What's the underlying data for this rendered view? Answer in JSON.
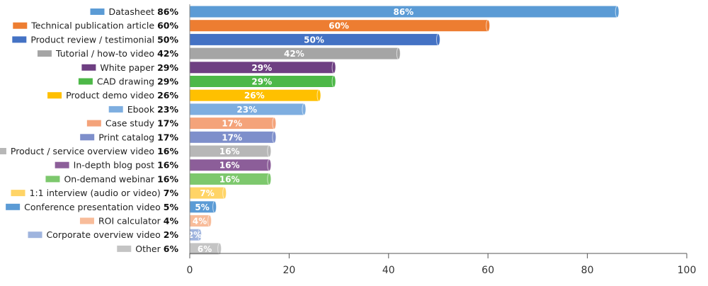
{
  "chart_data": {
    "type": "bar",
    "orientation": "horizontal",
    "categories": [
      "Datasheet",
      "Technical publication article",
      "Product review / testimonial",
      "Tutorial / how-to video",
      "White paper",
      "CAD drawing",
      "Product demo video",
      "Ebook",
      "Case study",
      "Print catalog",
      "Product / service overview video",
      "In-depth blog post",
      "On-demand webinar",
      "1:1 interview (audio or video)",
      "Conference presentation video",
      "ROI calculator",
      "Corporate overview video",
      "Other"
    ],
    "values": [
      86,
      60,
      50,
      42,
      29,
      29,
      26,
      23,
      17,
      17,
      16,
      16,
      16,
      7,
      5,
      4,
      2,
      6
    ],
    "value_labels": [
      "86%",
      "60%",
      "50%",
      "42%",
      "29%",
      "29%",
      "26%",
      "23%",
      "17%",
      "17%",
      "16%",
      "16%",
      "16%",
      "7%",
      "5%",
      "4%",
      "2%",
      "6%"
    ],
    "colors": [
      "#5B9BD5",
      "#ED7D31",
      "#4472C4",
      "#A5A5A5",
      "#6E3F82",
      "#4DB848",
      "#FFC000",
      "#7EAEE0",
      "#F4A37A",
      "#7E8FCB",
      "#B7B7B7",
      "#8C5E99",
      "#7DC86D",
      "#FFD466",
      "#5B9BD5",
      "#F8BC9A",
      "#9FB4DE",
      "#C4C4C4"
    ],
    "xlim": [
      0,
      100
    ],
    "x_ticks": [
      "0",
      "20",
      "40",
      "60",
      "80",
      "100"
    ],
    "grid": false,
    "legend": "none",
    "title": "",
    "xlabel": "",
    "ylabel": ""
  }
}
